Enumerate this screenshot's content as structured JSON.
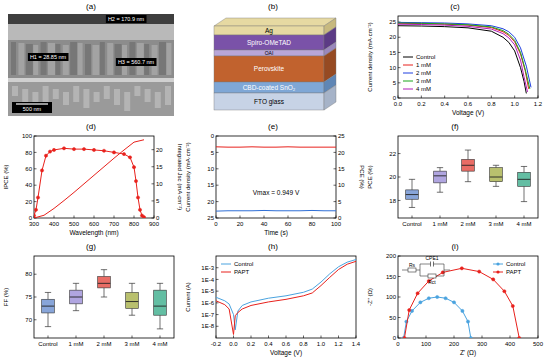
{
  "image": {
    "panel": "(a)",
    "labels": [
      "H2 = 170.9 nm",
      "H1 = 28.85 nm",
      "H3 = 560.7 nm"
    ],
    "scale_bar": "500 nm"
  },
  "diagram": {
    "panel": "(b)",
    "layers": [
      "Ag",
      "Spiro-OMeTAD",
      "OAI",
      "Perovskite",
      "CBD-coated SnO₂",
      "FTO glass"
    ]
  },
  "chart_data": [
    {
      "panel": "(c)",
      "type": "line",
      "x_label": "Voltage (V)",
      "y_label": "Current density (mA·cm⁻²)",
      "xlim": [
        0,
        1.2
      ],
      "xticks": [
        {
          "value": 0,
          "label": "0.0"
        },
        0.2,
        0.4,
        0.6,
        0.8,
        {
          "value": 1,
          "label": "1.0"
        },
        1.2
      ],
      "ylim": [
        0,
        27
      ],
      "yticks": [
        0,
        5,
        10,
        15,
        20,
        25
      ],
      "legend": "lower left",
      "series": [
        {
          "name": "Control",
          "color": "#000000",
          "x": [
            0,
            0.2,
            0.4,
            0.6,
            0.8,
            0.9,
            0.95,
            1.0,
            1.05,
            1.08,
            1.1
          ],
          "values": [
            23.8,
            23.7,
            23.5,
            23.1,
            22.0,
            20.0,
            18.3,
            15.5,
            10.0,
            5.5,
            1.5
          ]
        },
        {
          "name": "1 mM",
          "color": "#e8211c",
          "x": [
            0,
            0.2,
            0.4,
            0.6,
            0.8,
            0.9,
            0.95,
            1.0,
            1.05,
            1.09,
            1.12
          ],
          "values": [
            24.6,
            24.5,
            24.3,
            24.0,
            23.2,
            21.8,
            20.6,
            18.5,
            14.5,
            9.0,
            3.0
          ]
        },
        {
          "name": "2 mM",
          "color": "#1f3fe0",
          "x": [
            0,
            0.2,
            0.4,
            0.6,
            0.8,
            0.9,
            0.95,
            1.0,
            1.05,
            1.1,
            1.14
          ],
          "values": [
            24.9,
            24.8,
            24.7,
            24.4,
            23.8,
            22.8,
            21.8,
            20.0,
            16.5,
            10.5,
            3.5
          ]
        },
        {
          "name": "3 mM",
          "color": "#1aa51a",
          "x": [
            0,
            0.2,
            0.4,
            0.6,
            0.8,
            0.9,
            0.95,
            1.0,
            1.05,
            1.09,
            1.13
          ],
          "values": [
            24.7,
            24.6,
            24.4,
            24.1,
            23.4,
            22.2,
            21.0,
            19.0,
            15.0,
            9.5,
            3.0
          ]
        },
        {
          "name": "4 mM",
          "color": "#b01cb8",
          "x": [
            0,
            0.2,
            0.4,
            0.6,
            0.8,
            0.9,
            0.95,
            1.0,
            1.05,
            1.08,
            1.11
          ],
          "values": [
            24.3,
            24.2,
            24.0,
            23.6,
            22.7,
            21.2,
            19.8,
            17.5,
            12.5,
            7.0,
            2.0
          ]
        }
      ]
    },
    {
      "panel": "(d)",
      "type": "line",
      "x_label": "Wavelength (nm)",
      "y_label": "IPCE (%)",
      "y2_label": "Integrated Jsc (mA·cm⁻²)",
      "xlim": [
        300,
        900
      ],
      "xticks": [
        300,
        400,
        500,
        600,
        700,
        800,
        900
      ],
      "ylim": [
        0,
        100
      ],
      "yticks": [
        0,
        20,
        40,
        60,
        80,
        100
      ],
      "y2lim": [
        0,
        24
      ],
      "y2ticks": [
        0,
        5,
        10,
        15,
        20
      ],
      "series": [
        {
          "name": "IPCE",
          "color": "#e8211c",
          "marker": "circle",
          "x": [
            300,
            310,
            320,
            340,
            360,
            380,
            400,
            450,
            500,
            550,
            600,
            650,
            700,
            750,
            780,
            800,
            810,
            820,
            830,
            840,
            850
          ],
          "values": [
            3,
            10,
            25,
            58,
            76,
            81,
            83,
            85,
            84,
            84,
            83,
            82,
            80,
            78,
            74,
            62,
            45,
            25,
            10,
            3,
            1
          ]
        },
        {
          "name": "Integrated Jsc",
          "color": "#e8211c",
          "axis": "y2",
          "x": [
            300,
            350,
            400,
            450,
            500,
            550,
            600,
            650,
            700,
            750,
            800,
            850
          ],
          "values": [
            0,
            0.8,
            2.8,
            5.1,
            7.5,
            10.0,
            12.5,
            15.0,
            17.5,
            19.9,
            22.2,
            22.9
          ]
        }
      ]
    },
    {
      "panel": "(e)",
      "type": "line",
      "x_label": "Time (s)",
      "y_label": "Current density (mA·cm⁻²)",
      "y2_label": "PCE (%)",
      "annotation": "Vmax = 0.949 V",
      "xlim": [
        0,
        100
      ],
      "xticks": [
        0,
        20,
        40,
        60,
        80,
        100
      ],
      "ylim": [
        25,
        0
      ],
      "yticks": [
        0,
        5,
        10,
        15,
        20,
        25
      ],
      "y2lim": [
        0,
        25
      ],
      "y2ticks": [
        0,
        5,
        10,
        15,
        20,
        25
      ],
      "x": [
        0,
        10,
        20,
        30,
        40,
        50,
        60,
        70,
        80,
        90,
        100
      ],
      "series": [
        {
          "name": "Current density",
          "color": "#2f6fd6",
          "values": [
            22.9,
            22.8,
            22.8,
            22.8,
            22.7,
            22.8,
            22.8,
            22.8,
            22.7,
            22.8,
            22.8
          ]
        },
        {
          "name": "PCE",
          "color": "#e8211c",
          "axis": "y2",
          "values": [
            21.7,
            21.6,
            21.6,
            21.7,
            21.6,
            21.6,
            21.7,
            21.6,
            21.6,
            21.6,
            21.6
          ]
        }
      ]
    },
    {
      "panel": "(f)",
      "type": "box",
      "y_label": "PCE (%)",
      "categories": [
        "Control",
        "1 mM",
        "2 mM",
        "3 mM",
        "4 mM"
      ],
      "ylim": [
        16.5,
        23.5
      ],
      "yticks": [
        18,
        20,
        22
      ],
      "colors": [
        "#6a8fd0",
        "#9c8fd8",
        "#e4473f",
        "#a8b04a",
        "#3cae8c"
      ],
      "boxes": [
        {
          "min": 17.4,
          "q1": 18.1,
          "median": 18.5,
          "q3": 18.9,
          "max": 19.8
        },
        {
          "min": 18.7,
          "q1": 19.5,
          "median": 20.1,
          "q3": 20.5,
          "max": 20.8
        },
        {
          "min": 19.6,
          "q1": 20.5,
          "median": 21.0,
          "q3": 21.5,
          "max": 22.3
        },
        {
          "min": 19.2,
          "q1": 19.6,
          "median": 20.0,
          "q3": 20.8,
          "max": 21.0
        },
        {
          "min": 17.9,
          "q1": 19.2,
          "median": 19.8,
          "q3": 20.4,
          "max": 20.9
        }
      ]
    },
    {
      "panel": "(g)",
      "type": "box",
      "y_label": "FF (%)",
      "categories": [
        "Control",
        "1 mM",
        "2 mM",
        "3 mM",
        "4 mM"
      ],
      "ylim": [
        66,
        84
      ],
      "yticks": [
        70,
        75,
        80
      ],
      "colors": [
        "#6a8fd0",
        "#9c8fd8",
        "#e4473f",
        "#a8b04a",
        "#3cae8c"
      ],
      "boxes": [
        {
          "min": 68.5,
          "q1": 71.5,
          "median": 73,
          "q3": 74.5,
          "max": 76
        },
        {
          "min": 72,
          "q1": 73.5,
          "median": 75,
          "q3": 76.5,
          "max": 78
        },
        {
          "min": 75,
          "q1": 77,
          "median": 78,
          "q3": 79.5,
          "max": 81
        },
        {
          "min": 71,
          "q1": 72.5,
          "median": 74,
          "q3": 76,
          "max": 78
        },
        {
          "min": 68,
          "q1": 71,
          "median": 73,
          "q3": 76.5,
          "max": 78
        }
      ]
    },
    {
      "panel": "(h)",
      "type": "line",
      "log": "y",
      "x_label": "Voltage (V)",
      "y_label": "Current (A)",
      "xlim": [
        -0.2,
        1.4
      ],
      "xticks": [
        -0.2,
        {
          "value": 0,
          "label": "0.0"
        },
        0.2,
        0.4,
        0.6,
        0.8,
        {
          "value": 1,
          "label": "1.0"
        },
        1.2,
        1.4
      ],
      "ylim": [
        1e-09,
        0.01
      ],
      "yticks": [
        {
          "value": 1e-08,
          "label": "1E-8"
        },
        {
          "value": 1e-07,
          "label": "1E-7"
        },
        {
          "value": 1e-06,
          "label": "1E-6"
        },
        {
          "value": 1e-05,
          "label": "1E-5"
        },
        {
          "value": 0.0001,
          "label": "1E-4"
        },
        {
          "value": 0.001,
          "label": "1E-3"
        }
      ],
      "legend": "upper left",
      "x": [
        -0.2,
        -0.1,
        -0.05,
        0,
        0.02,
        0.05,
        0.1,
        0.2,
        0.4,
        0.6,
        0.8,
        0.9,
        1.0,
        1.1,
        1.2,
        1.3,
        1.4
      ],
      "series": [
        {
          "name": "Control",
          "color": "#4aa3df",
          "values": [
            3e-06,
            1.5e-06,
            8e-07,
            1e-07,
            5e-09,
            2e-07,
            6e-07,
            1.2e-06,
            2.5e-06,
            4e-06,
            8e-06,
            1.5e-05,
            6e-05,
            0.0003,
            0.0012,
            0.003,
            0.005
          ]
        },
        {
          "name": "PAPT",
          "color": "#e8211c",
          "values": [
            1.5e-06,
            7e-07,
            3e-07,
            2e-09,
            8e-08,
            1.5e-07,
            3e-07,
            6e-07,
            1.2e-06,
            2e-06,
            4e-06,
            7e-06,
            3e-05,
            0.00015,
            0.0007,
            0.002,
            0.0035
          ]
        }
      ]
    },
    {
      "panel": "(i)",
      "type": "line",
      "x_label": "Z' (Ω)",
      "y_label": "-Z'' (Ω)",
      "circuit": [
        "Rs",
        "CPE1",
        "Rct"
      ],
      "xlim": [
        0,
        500
      ],
      "xticks": [
        0,
        100,
        200,
        300,
        400,
        500
      ],
      "ylim": [
        0,
        200
      ],
      "yticks": [
        0,
        50,
        100,
        150,
        200
      ],
      "legend": "upper right",
      "series": [
        {
          "name": "Control",
          "color": "#4aa3df",
          "marker": "circle",
          "x": [
            20,
            30,
            50,
            80,
            110,
            140,
            170,
            200,
            230,
            250,
            260
          ],
          "values": [
            0,
            40,
            66,
            87,
            97,
            100,
            97,
            87,
            66,
            40,
            0
          ]
        },
        {
          "name": "PAPT",
          "color": "#e8211c",
          "marker": "circle",
          "x": [
            23,
            40,
            70,
            110,
            160,
            228,
            290,
            340,
            380,
            410,
            433
          ],
          "values": [
            0,
            68,
            109,
            139,
            160,
            170,
            162,
            143,
            114,
            78,
            0
          ]
        }
      ]
    }
  ]
}
